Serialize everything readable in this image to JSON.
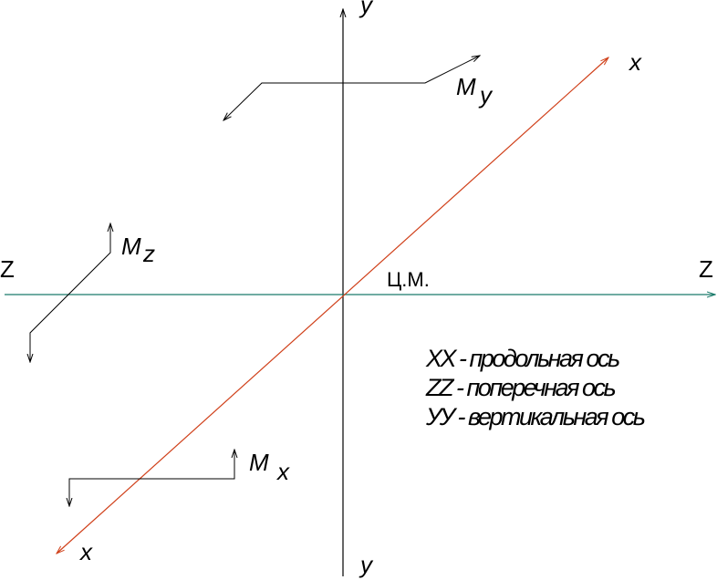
{
  "axes": {
    "y_top": "y",
    "y_bottom": "y",
    "x_top": "x",
    "x_bottom": "x",
    "z_left": "Z",
    "z_right": "Z"
  },
  "center": "Ц.М.",
  "moments": [
    {
      "symbol": "M",
      "index": "y"
    },
    {
      "symbol": "M",
      "index": "z"
    },
    {
      "symbol": "M",
      "index": "x"
    }
  ],
  "legend": [
    "XX - продольная ось",
    "ZZ - поперечная ось",
    "УУ - вертикальная ось"
  ]
}
